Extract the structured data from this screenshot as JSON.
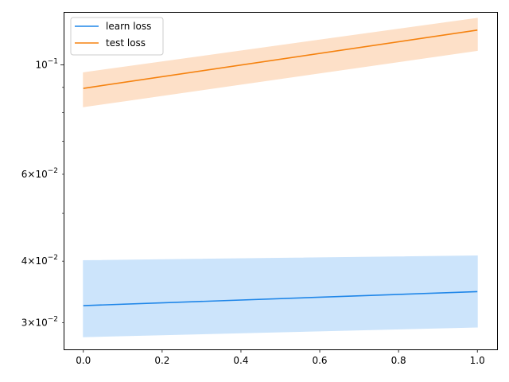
{
  "chart_data": {
    "type": "line",
    "y_scale": "log",
    "grid": false,
    "legend_position": "top-left",
    "xlim": [
      -0.05,
      1.05
    ],
    "ylim": [
      0.0265,
      0.128
    ],
    "x_ticks": [
      {
        "value": 0.0,
        "label": "0.0"
      },
      {
        "value": 0.2,
        "label": "0.2"
      },
      {
        "value": 0.4,
        "label": "0.4"
      },
      {
        "value": 0.6,
        "label": "0.6"
      },
      {
        "value": 0.8,
        "label": "0.8"
      },
      {
        "value": 1.0,
        "label": "1.0"
      }
    ],
    "y_major_ticks": [
      {
        "value": 0.1,
        "base": "10",
        "exp": "−1"
      }
    ],
    "y_minor_ticks": [
      {
        "value": 0.03,
        "mant": "3",
        "base": "10",
        "exp": "−2",
        "labeled": true
      },
      {
        "value": 0.04,
        "mant": "4",
        "base": "10",
        "exp": "−2",
        "labeled": true
      },
      {
        "value": 0.05,
        "labeled": false
      },
      {
        "value": 0.06,
        "mant": "6",
        "base": "10",
        "exp": "−2",
        "labeled": true
      },
      {
        "value": 0.07,
        "labeled": false
      },
      {
        "value": 0.08,
        "labeled": false
      },
      {
        "value": 0.09,
        "labeled": false
      }
    ],
    "series": [
      {
        "name": "learn loss",
        "color": "#1f86e8",
        "band_color": "#cce4fb",
        "x": [
          0.0,
          1.0
        ],
        "y": [
          0.0325,
          0.0347
        ],
        "lower": [
          0.0281,
          0.0294
        ],
        "upper": [
          0.0401,
          0.041
        ]
      },
      {
        "name": "test loss",
        "color": "#f5820f",
        "band_color": "#fde0c8",
        "x": [
          0.0,
          1.0
        ],
        "y": [
          0.0896,
          0.1176
        ],
        "lower": [
          0.0822,
          0.1069
        ],
        "upper": [
          0.0964,
          0.1243
        ]
      }
    ]
  }
}
